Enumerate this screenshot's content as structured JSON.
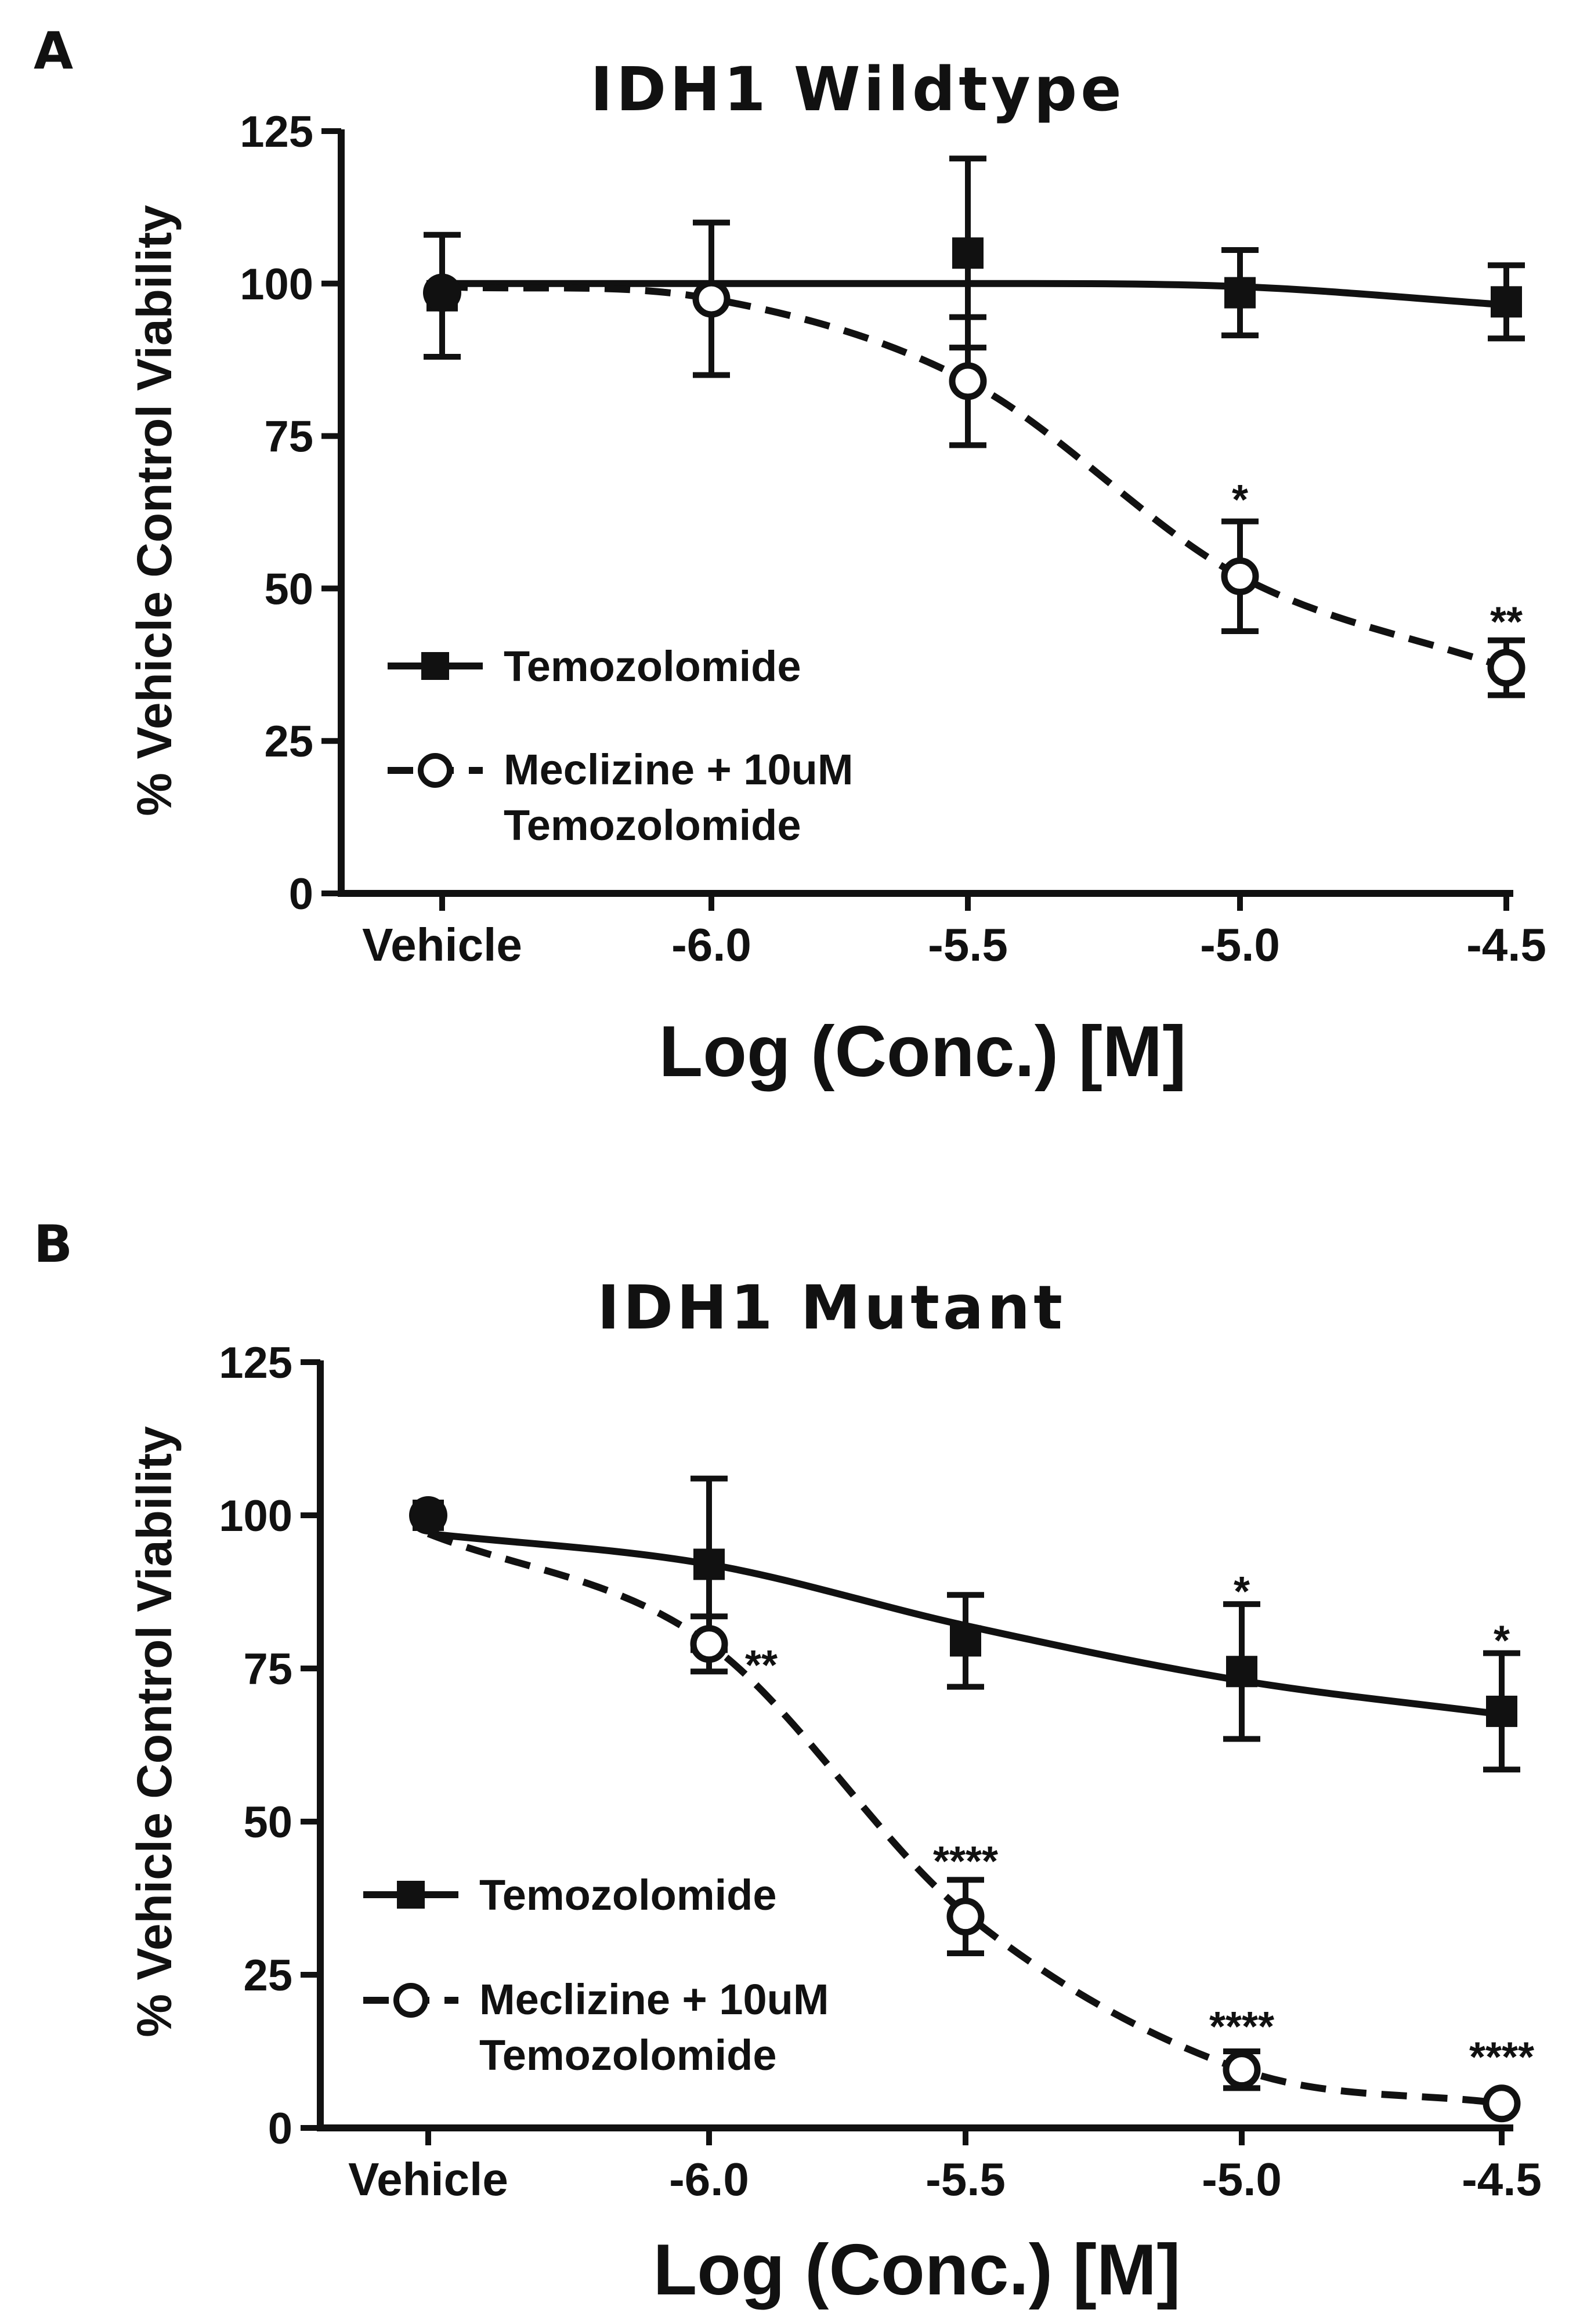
{
  "chart_data": [
    {
      "type": "line",
      "panel": "A",
      "title": "IDH1 Wildtype",
      "xlabel": "Log (Conc.) [M]",
      "ylabel": "% Vehicle Control Viability",
      "ylim": [
        0,
        125
      ],
      "yticks": [
        "0",
        "25",
        "50",
        "75",
        "100",
        "125"
      ],
      "x_ticks": [
        "Vehicle",
        "-6.0",
        "-5.5",
        "-5.0",
        "-4.5"
      ],
      "series": [
        {
          "name": "Temozolomide",
          "marker": "filled-square",
          "line": "solid",
          "x": [
            "Vehicle",
            "-6.0",
            "-5.5",
            "-5.0",
            "-4.5"
          ],
          "values": [
            98,
            null,
            105,
            98.5,
            97
          ],
          "err": [
            10,
            null,
            15.5,
            7,
            6
          ],
          "curve": [
            100,
            100,
            100,
            99.5,
            96.5
          ]
        },
        {
          "name": "Meclizine + 10uM Temozolomide",
          "name_lines": [
            "Meclizine + 10uM",
            "Temozolomide"
          ],
          "marker": "open-circle",
          "line": "dashed",
          "x": [
            "Vehicle",
            "-6.0",
            "-5.5",
            "-5.0",
            "-4.5"
          ],
          "values": [
            98.5,
            97.5,
            84,
            52,
            37
          ],
          "err": [
            null,
            12.5,
            10.5,
            9,
            4.5
          ],
          "curve": [
            99.5,
            97.5,
            84,
            52,
            37
          ]
        }
      ],
      "annotations": [
        {
          "x": "-5.0",
          "y": 66,
          "text": "*"
        },
        {
          "x": "-4.5",
          "y": 46,
          "text": "**"
        }
      ]
    },
    {
      "type": "line",
      "panel": "B",
      "title": "IDH1 Mutant",
      "xlabel": "Log (Conc.) [M]",
      "ylabel": "% Vehicle Control Viability",
      "ylim": [
        0,
        125
      ],
      "yticks": [
        "0",
        "25",
        "50",
        "75",
        "100",
        "125"
      ],
      "x_ticks": [
        "Vehicle",
        "-6.0",
        "-5.5",
        "-5.0",
        "-4.5"
      ],
      "series": [
        {
          "name": "Temozolomide",
          "marker": "filled-square",
          "line": "solid",
          "x": [
            "Vehicle",
            "-6.0",
            "-5.5",
            "-5.0",
            "-4.5"
          ],
          "values": [
            100,
            92,
            79.5,
            74.5,
            68
          ],
          "err": [
            null,
            14,
            7.5,
            11,
            9.5
          ],
          "curve": [
            97,
            92,
            82,
            73,
            67.5
          ]
        },
        {
          "name": "Meclizine + 10uM Temozolomide",
          "name_lines": [
            "Meclizine + 10uM",
            "Temozolomide"
          ],
          "marker": "open-circle",
          "line": "dashed",
          "x": [
            "Vehicle",
            "-6.0",
            "-5.5",
            "-5.0",
            "-4.5"
          ],
          "values": [
            100,
            79,
            34.5,
            9.5,
            4
          ],
          "err": [
            null,
            4.5,
            6,
            3,
            null
          ],
          "curve": [
            97,
            79,
            35,
            9.5,
            4
          ]
        }
      ],
      "annotations": [
        {
          "x": "-6.0",
          "y": 77,
          "text": "**",
          "offset": "right"
        },
        {
          "x": "-5.5",
          "y": 45,
          "text": "****"
        },
        {
          "x": "-5.0",
          "y": 18,
          "text": "****"
        },
        {
          "x": "-4.5",
          "y": 13,
          "text": "****"
        },
        {
          "x": "-5.0",
          "y": 89,
          "text": "*"
        },
        {
          "x": "-4.5",
          "y": 81,
          "text": "*"
        }
      ]
    }
  ]
}
